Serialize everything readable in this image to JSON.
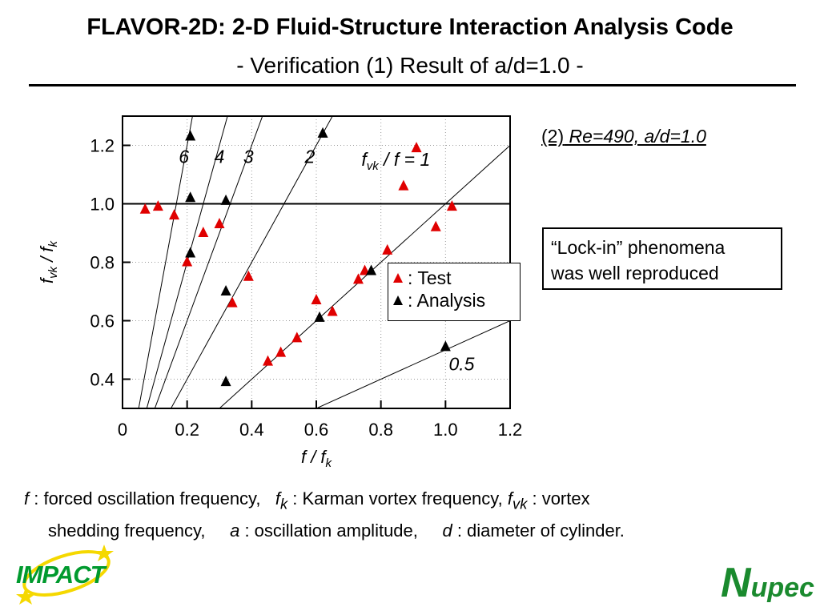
{
  "header": {
    "title": "FLAVOR-2D: 2-D Fluid-Structure Interaction Analysis Code",
    "subtitle": "- Verification (1) Result of a/d=1.0 -"
  },
  "case_label_prefix": "(2)",
  "case_label_italic": "Re=490, a/d=1.0",
  "note": {
    "line1": "“Lock-in” phenomena",
    "line2": "was well reproduced"
  },
  "legend": {
    "test": ": Test",
    "analysis": ": Analysis"
  },
  "footnote": {
    "f_sym": "f",
    "f_desc": " : forced oscillation frequency,",
    "fk_sym": "f",
    "fk_sub": "k",
    "fk_desc": " : Karman vortex frequency,",
    "fvk_sym": "f",
    "fvk_sub": "vk",
    "fvk_desc": " : vortex",
    "line2_a": "shedding frequency,",
    "a_sym": "a",
    "a_desc": " : oscillation amplitude,",
    "d_sym": "d",
    "d_desc": " : diameter of cylinder."
  },
  "logos": {
    "impact": "IMPACT",
    "nupec_big": "N",
    "nupec_rest": "upec"
  },
  "colors": {
    "test": "#e00000",
    "analysis": "#000000",
    "impact": "#009a2e",
    "nupec": "#1a8a2e",
    "star": "#f5d800"
  },
  "chart_data": {
    "type": "scatter",
    "xlabel_main": "f / f",
    "xlabel_sub": "k",
    "ylabel_main": "f",
    "ylabel_sub": "vk",
    "ylabel_mid": " / f",
    "ylabel_sub2": "k",
    "xlim": [
      0.0,
      1.2
    ],
    "ylim": [
      0.3,
      1.3
    ],
    "x_ticks": [
      {
        "v": 0.0,
        "label": "0"
      },
      {
        "v": 0.2,
        "label": "0.2"
      },
      {
        "v": 0.4,
        "label": "0.4"
      },
      {
        "v": 0.6,
        "label": "0.6"
      },
      {
        "v": 0.8,
        "label": "0.8"
      },
      {
        "v": 1.0,
        "label": "1.0"
      },
      {
        "v": 1.2,
        "label": "1.2"
      }
    ],
    "y_ticks": [
      {
        "v": 0.4,
        "label": "0.4"
      },
      {
        "v": 0.6,
        "label": "0.6"
      },
      {
        "v": 0.8,
        "label": "0.8"
      },
      {
        "v": 1.0,
        "label": "1.0"
      },
      {
        "v": 1.2,
        "label": "1.2"
      }
    ],
    "grid": true,
    "reference_hline": 1.0,
    "ratio_lines": [
      {
        "ratio": 1,
        "label": "f",
        "label_sub": "vk",
        "label_rest": " / f = 1",
        "label_at": [
          1.0,
          1.13
        ]
      },
      {
        "ratio": 2,
        "label": "2",
        "label_at": [
          0.58,
          1.14
        ]
      },
      {
        "ratio": 3,
        "label": "3",
        "label_at": [
          0.39,
          1.14
        ]
      },
      {
        "ratio": 4,
        "label": "4",
        "label_at": [
          0.3,
          1.14
        ]
      },
      {
        "ratio": 6,
        "label": "6",
        "label_at": [
          0.19,
          1.14
        ]
      },
      {
        "ratio": 0.5,
        "label": "0.5",
        "label_at": [
          1.05,
          0.43
        ]
      }
    ],
    "series": [
      {
        "name": ": Test",
        "marker": "triangle",
        "points": [
          [
            0.07,
            0.98
          ],
          [
            0.11,
            0.99
          ],
          [
            0.16,
            0.96
          ],
          [
            0.2,
            0.8
          ],
          [
            0.25,
            0.9
          ],
          [
            0.3,
            0.93
          ],
          [
            0.34,
            0.66
          ],
          [
            0.39,
            0.75
          ],
          [
            0.45,
            0.46
          ],
          [
            0.49,
            0.49
          ],
          [
            0.54,
            0.54
          ],
          [
            0.6,
            0.67
          ],
          [
            0.65,
            0.63
          ],
          [
            0.73,
            0.74
          ],
          [
            0.75,
            0.77
          ],
          [
            0.82,
            0.84
          ],
          [
            0.87,
            1.06
          ],
          [
            0.91,
            1.19
          ],
          [
            0.97,
            0.92
          ],
          [
            1.02,
            0.99
          ]
        ]
      },
      {
        "name": ": Analysis",
        "marker": "triangle",
        "points": [
          [
            0.21,
            1.23
          ],
          [
            0.21,
            1.02
          ],
          [
            0.21,
            0.83
          ],
          [
            0.32,
            1.01
          ],
          [
            0.32,
            0.7
          ],
          [
            0.32,
            0.39
          ],
          [
            0.62,
            1.24
          ],
          [
            0.61,
            0.61
          ],
          [
            0.77,
            0.77
          ],
          [
            1.0,
            0.51
          ]
        ]
      }
    ]
  }
}
